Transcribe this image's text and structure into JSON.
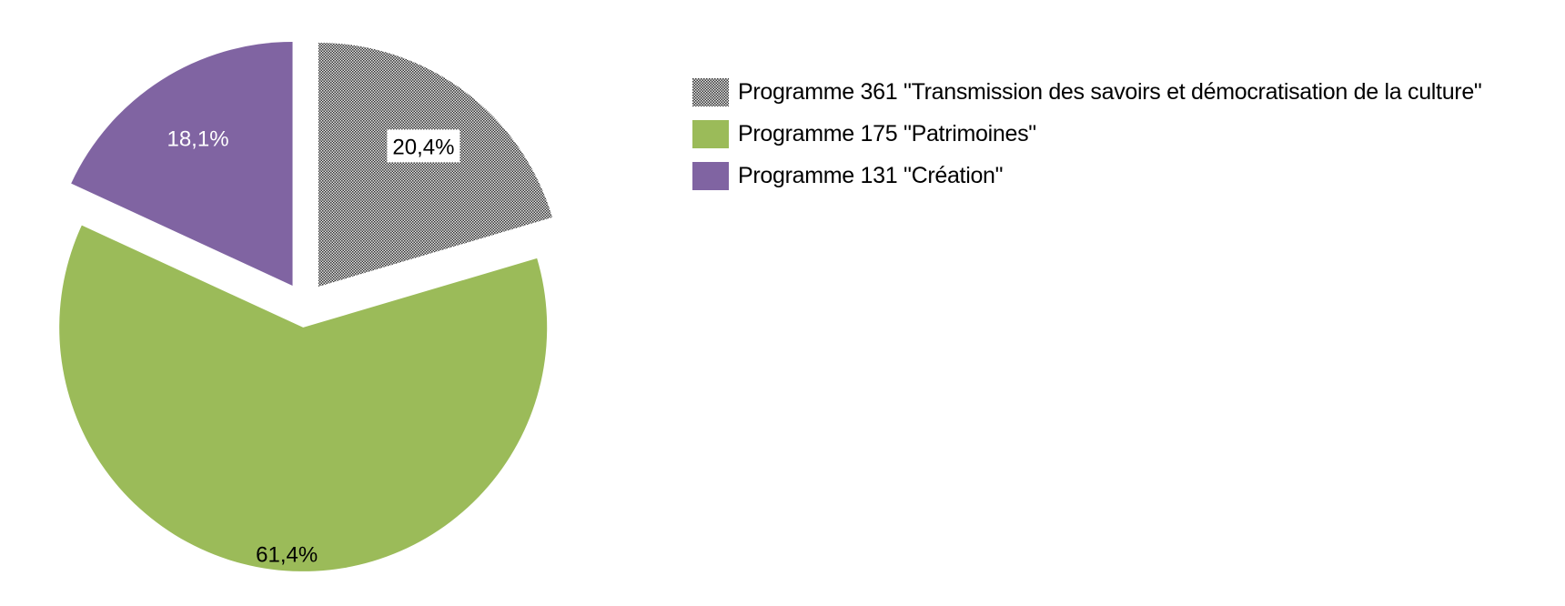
{
  "chart_data": {
    "type": "pie",
    "exploded": true,
    "legend_position": "right",
    "slices": [
      {
        "name": "Programme 361 \"Transmission des savoirs et démocratisation de la culture\"",
        "value": 20.4,
        "label": "20,4%",
        "color": "#808080",
        "pattern": "checkered",
        "label_color": "#000000",
        "label_background": "#ffffff"
      },
      {
        "name": "Programme 175 \"Patrimoines\"",
        "value": 61.4,
        "label": "61,4%",
        "color": "#9bbb59",
        "label_color": "#000000"
      },
      {
        "name": "Programme 131 \"Création\"",
        "value": 18.1,
        "label": "18,1%",
        "color": "#8064a2",
        "label_color": "#ffffff"
      }
    ]
  }
}
